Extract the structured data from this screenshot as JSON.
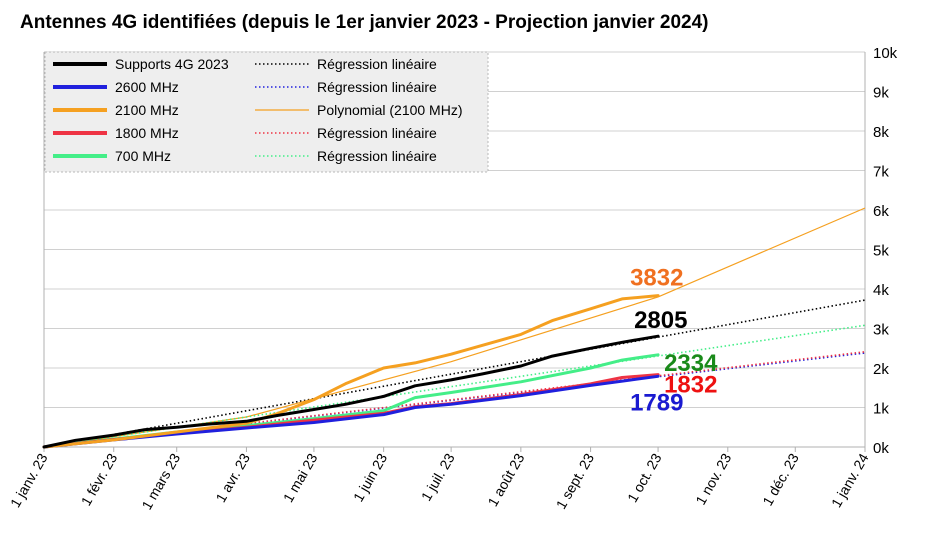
{
  "chart_data": {
    "type": "line",
    "title": "Antennes 4G identifiées (depuis le 1er janvier 2023 - Projection janvier 2024)",
    "x_tick_labels": [
      "1 janv. 23",
      "1 févr. 23",
      "1 mars 23",
      "1 avr. 23",
      "1 mai 23",
      "1 juin 23",
      "1 juil. 23",
      "1 août 23",
      "1 sept. 23",
      "1 oct. 23",
      "1 nov. 23",
      "1 déc. 23",
      "1 janv. 24"
    ],
    "y_tick_labels": [
      "0k",
      "1k",
      "2k",
      "3k",
      "4k",
      "5k",
      "6k",
      "7k",
      "8k",
      "9k",
      "10k"
    ],
    "xlim": [
      "2023-01-01",
      "2024-01-01"
    ],
    "ylim": [
      0,
      10000
    ],
    "grid": "horizontal",
    "y_axis_side": "right",
    "legend_position": "top-left",
    "series": [
      {
        "name": "Supports 4G 2023",
        "color": "#000000",
        "width": 3,
        "points": [
          [
            "2023-01-01",
            0
          ],
          [
            "2023-01-15",
            170
          ],
          [
            "2023-02-01",
            300
          ],
          [
            "2023-02-15",
            440
          ],
          [
            "2023-03-01",
            500
          ],
          [
            "2023-03-15",
            580
          ],
          [
            "2023-04-01",
            650
          ],
          [
            "2023-04-15",
            800
          ],
          [
            "2023-05-01",
            950
          ],
          [
            "2023-05-15",
            1080
          ],
          [
            "2023-06-01",
            1280
          ],
          [
            "2023-06-15",
            1550
          ],
          [
            "2023-07-01",
            1700
          ],
          [
            "2023-07-15",
            1850
          ],
          [
            "2023-08-01",
            2050
          ],
          [
            "2023-08-15",
            2300
          ],
          [
            "2023-09-01",
            2500
          ],
          [
            "2023-09-15",
            2650
          ],
          [
            "2023-10-01",
            2805
          ]
        ]
      },
      {
        "name": "2600 MHz",
        "color": "#2020dd",
        "width": 3,
        "points": [
          [
            "2023-01-01",
            0
          ],
          [
            "2023-02-01",
            180
          ],
          [
            "2023-03-01",
            330
          ],
          [
            "2023-04-01",
            480
          ],
          [
            "2023-05-01",
            620
          ],
          [
            "2023-06-01",
            820
          ],
          [
            "2023-06-15",
            1000
          ],
          [
            "2023-07-01",
            1080
          ],
          [
            "2023-08-01",
            1300
          ],
          [
            "2023-09-01",
            1560
          ],
          [
            "2023-10-01",
            1789
          ]
        ]
      },
      {
        "name": "2100 MHz",
        "color": "#f5a020",
        "width": 3,
        "points": [
          [
            "2023-01-01",
            0
          ],
          [
            "2023-02-01",
            180
          ],
          [
            "2023-03-01",
            380
          ],
          [
            "2023-04-01",
            600
          ],
          [
            "2023-04-15",
            850
          ],
          [
            "2023-05-01",
            1200
          ],
          [
            "2023-05-15",
            1600
          ],
          [
            "2023-06-01",
            2000
          ],
          [
            "2023-06-15",
            2130
          ],
          [
            "2023-07-01",
            2350
          ],
          [
            "2023-08-01",
            2850
          ],
          [
            "2023-08-15",
            3200
          ],
          [
            "2023-09-01",
            3500
          ],
          [
            "2023-09-15",
            3750
          ],
          [
            "2023-10-01",
            3832
          ]
        ]
      },
      {
        "name": "1800 MHz",
        "color": "#ee3344",
        "width": 3,
        "points": [
          [
            "2023-01-01",
            0
          ],
          [
            "2023-02-01",
            190
          ],
          [
            "2023-03-01",
            340
          ],
          [
            "2023-04-01",
            500
          ],
          [
            "2023-05-01",
            680
          ],
          [
            "2023-06-01",
            850
          ],
          [
            "2023-06-15",
            1020
          ],
          [
            "2023-07-01",
            1100
          ],
          [
            "2023-08-01",
            1330
          ],
          [
            "2023-09-01",
            1600
          ],
          [
            "2023-09-15",
            1760
          ],
          [
            "2023-10-01",
            1832
          ]
        ]
      },
      {
        "name": "700 MHz",
        "color": "#44ee88",
        "width": 3,
        "points": [
          [
            "2023-01-01",
            0
          ],
          [
            "2023-02-01",
            200
          ],
          [
            "2023-03-01",
            380
          ],
          [
            "2023-04-01",
            540
          ],
          [
            "2023-05-01",
            720
          ],
          [
            "2023-06-01",
            920
          ],
          [
            "2023-06-15",
            1250
          ],
          [
            "2023-07-01",
            1380
          ],
          [
            "2023-08-01",
            1650
          ],
          [
            "2023-09-01",
            2000
          ],
          [
            "2023-09-15",
            2200
          ],
          [
            "2023-10-01",
            2334
          ]
        ]
      }
    ],
    "trendlines": [
      {
        "name": "Régression linéaire",
        "of": "Supports 4G 2023",
        "color": "#000000",
        "style": "dotted",
        "points": [
          [
            "2023-01-01",
            0
          ],
          [
            "2024-01-01",
            3720
          ]
        ]
      },
      {
        "name": "Régression linéaire",
        "of": "2600 MHz",
        "color": "#2020dd",
        "style": "dotted",
        "points": [
          [
            "2023-01-01",
            0
          ],
          [
            "2024-01-01",
            2380
          ]
        ]
      },
      {
        "name": "Polynomial (2100 MHz)",
        "of": "2100 MHz",
        "color": "#f5a020",
        "style": "solid-thin",
        "points": [
          [
            "2023-01-01",
            0
          ],
          [
            "2023-04-01",
            760
          ],
          [
            "2023-07-01",
            2160
          ],
          [
            "2023-10-01",
            3800
          ],
          [
            "2024-01-01",
            6050
          ]
        ]
      },
      {
        "name": "Régression linéaire",
        "of": "1800 MHz",
        "color": "#ee3344",
        "style": "dotted",
        "points": [
          [
            "2023-01-01",
            0
          ],
          [
            "2024-01-01",
            2410
          ]
        ]
      },
      {
        "name": "Régression linéaire",
        "of": "700 MHz",
        "color": "#44ee88",
        "style": "dotted",
        "points": [
          [
            "2023-01-01",
            0
          ],
          [
            "2024-01-01",
            3080
          ]
        ]
      }
    ],
    "annotations": [
      {
        "text": "3832",
        "color": "#f07020",
        "x": "2023-10-01",
        "y": 3832
      },
      {
        "text": "2805",
        "color": "#000000",
        "x": "2023-10-01",
        "y": 2805
      },
      {
        "text": "2334",
        "color": "#1a8a1a",
        "x": "2023-10-01",
        "y": 2334
      },
      {
        "text": "1832",
        "color": "#ee1111",
        "x": "2023-10-01",
        "y": 1832
      },
      {
        "text": "1789",
        "color": "#1a1ad0",
        "x": "2023-10-01",
        "y": 1789
      }
    ],
    "legend": {
      "left": [
        {
          "label": "Supports 4G 2023",
          "color": "#000000",
          "style": "solid"
        },
        {
          "label": "2600 MHz",
          "color": "#2020dd",
          "style": "solid"
        },
        {
          "label": "2100 MHz",
          "color": "#f5a020",
          "style": "solid"
        },
        {
          "label": "1800 MHz",
          "color": "#ee3344",
          "style": "solid"
        },
        {
          "label": "700 MHz",
          "color": "#44ee88",
          "style": "solid"
        }
      ],
      "right": [
        {
          "label": "Régression linéaire",
          "color": "#000000",
          "style": "dotted"
        },
        {
          "label": "Régression linéaire",
          "color": "#2020dd",
          "style": "dotted"
        },
        {
          "label": "Polynomial (2100 MHz)",
          "color": "#f5a020",
          "style": "thin"
        },
        {
          "label": "Régression linéaire",
          "color": "#ee3344",
          "style": "dotted"
        },
        {
          "label": "Régression linéaire",
          "color": "#44ee88",
          "style": "dotted"
        }
      ]
    }
  }
}
